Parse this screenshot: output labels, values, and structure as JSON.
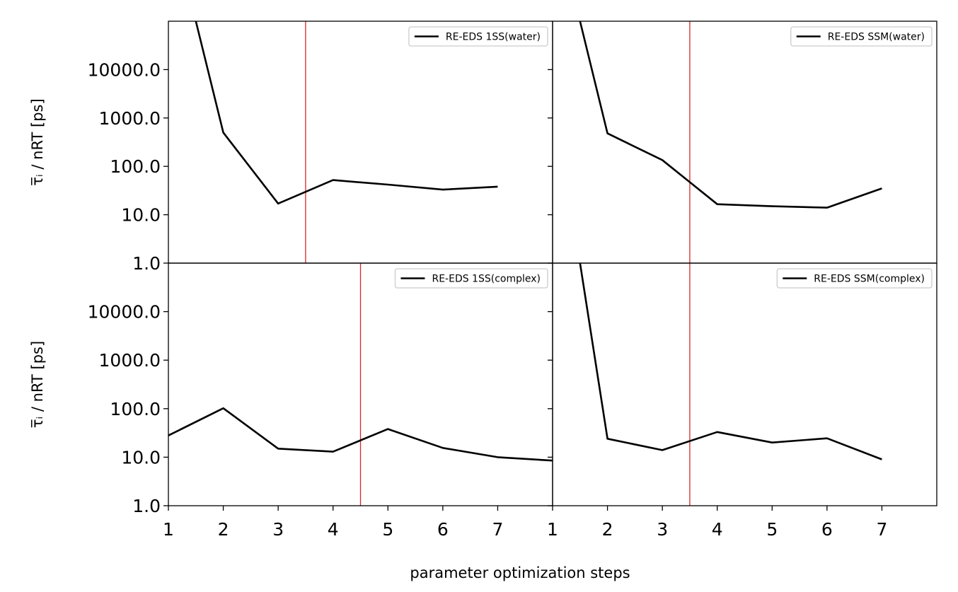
{
  "figure": {
    "xlabel": "parameter optimization steps",
    "ylabel": "τ̅ᵢ / nRT [ps]"
  },
  "chart_data": [
    {
      "type": "line",
      "panel": "top-left",
      "series": [
        {
          "name": "RE-EDS 1SS(water)",
          "color": "#000000",
          "x": [
            1.5,
            2,
            3,
            4,
            5,
            6,
            7
          ],
          "y": [
            100000,
            500,
            17,
            52,
            42,
            33,
            38
          ]
        }
      ],
      "vline": {
        "x": 3.5,
        "color": "#d62728"
      },
      "xlim": [
        1,
        8
      ],
      "ylim": [
        1,
        100000
      ],
      "yscale": "log",
      "yticks": [
        1,
        10,
        100,
        1000,
        10000
      ],
      "ytick_labels": [
        "1.0",
        "10.0",
        "100.0",
        "1000.0",
        "10000.0"
      ],
      "xticks": [],
      "xtick_labels": [],
      "show_yticklabels": true,
      "show_ylabel": true,
      "legend": "top-right"
    },
    {
      "type": "line",
      "panel": "top-right",
      "series": [
        {
          "name": "RE-EDS SSM(water)",
          "color": "#000000",
          "x": [
            1.5,
            2,
            3,
            4,
            5,
            6,
            7
          ],
          "y": [
            100000,
            480,
            135,
            16.5,
            15,
            14,
            35
          ]
        }
      ],
      "vline": {
        "x": 3.5,
        "color": "#d62728"
      },
      "xlim": [
        1,
        8
      ],
      "ylim": [
        1,
        100000
      ],
      "yscale": "log",
      "yticks": [
        1,
        10,
        100,
        1000,
        10000
      ],
      "ytick_labels": [],
      "xticks": [],
      "xtick_labels": [],
      "show_yticklabels": false,
      "show_ylabel": false,
      "legend": "top-right"
    },
    {
      "type": "line",
      "panel": "bottom-left",
      "series": [
        {
          "name": "RE-EDS 1SS(complex)",
          "color": "#000000",
          "x": [
            1,
            2,
            3,
            4,
            5,
            6,
            7,
            8
          ],
          "y": [
            28,
            102,
            15,
            13,
            38,
            15.5,
            10,
            8.5
          ]
        }
      ],
      "vline": {
        "x": 4.5,
        "color": "#d62728"
      },
      "xlim": [
        1,
        8
      ],
      "ylim": [
        1,
        100000
      ],
      "yscale": "log",
      "yticks": [
        1,
        10,
        100,
        1000,
        10000
      ],
      "ytick_labels": [
        "1.0",
        "10.0",
        "100.0",
        "1000.0",
        "10000.0"
      ],
      "xticks": [
        1,
        2,
        3,
        4,
        5,
        6,
        7
      ],
      "xtick_labels": [
        "1",
        "2",
        "3",
        "4",
        "5",
        "6",
        "7"
      ],
      "show_yticklabels": true,
      "show_ylabel": true,
      "legend": "top-right"
    },
    {
      "type": "line",
      "panel": "bottom-right",
      "series": [
        {
          "name": "RE-EDS SSM(complex)",
          "color": "#000000",
          "x": [
            1.5,
            2,
            3,
            4,
            5,
            6,
            7
          ],
          "y": [
            100000,
            24,
            14,
            33,
            20,
            24.5,
            9
          ]
        }
      ],
      "vline": {
        "x": 3.5,
        "color": "#d62728"
      },
      "xlim": [
        1,
        8
      ],
      "ylim": [
        1,
        100000
      ],
      "yscale": "log",
      "yticks": [
        1,
        10,
        100,
        1000,
        10000
      ],
      "ytick_labels": [],
      "xticks": [
        1,
        2,
        3,
        4,
        5,
        6,
        7
      ],
      "xtick_labels": [
        "1",
        "2",
        "3",
        "4",
        "5",
        "6",
        "7"
      ],
      "show_yticklabels": false,
      "show_ylabel": false,
      "legend": "top-right"
    }
  ]
}
